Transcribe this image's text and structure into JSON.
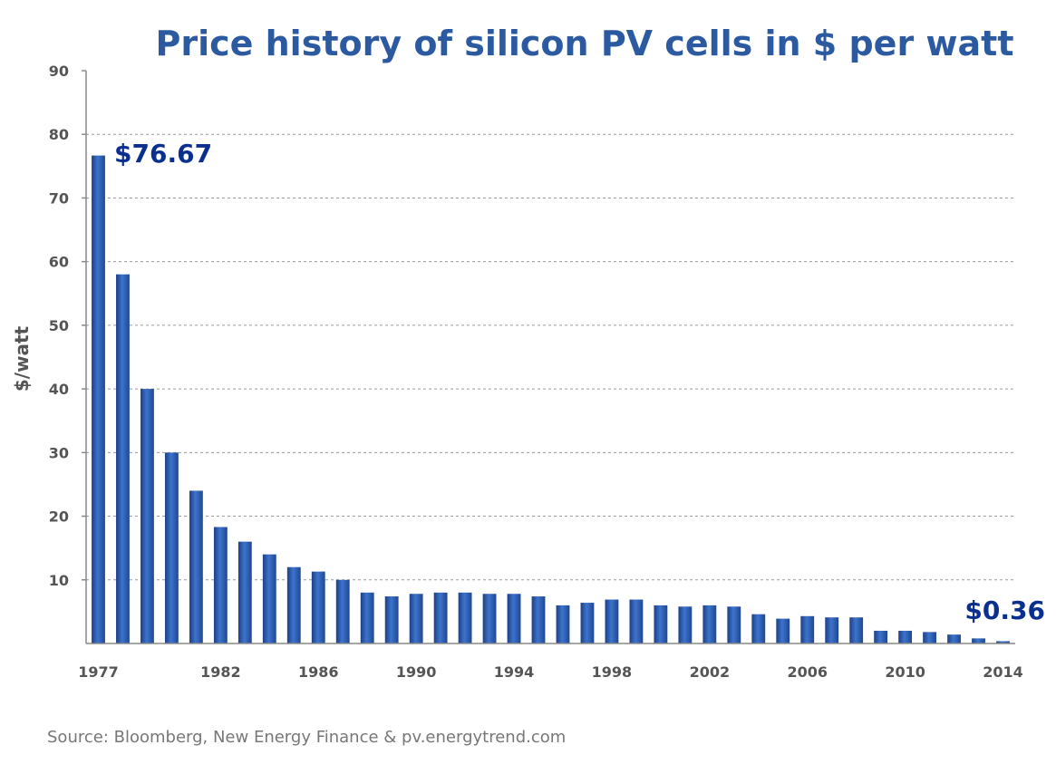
{
  "chart_data": {
    "type": "bar",
    "title": "Price history of silicon PV cells in $ per watt",
    "ylabel": "$/watt",
    "xlabel": "",
    "ylim": [
      0,
      90
    ],
    "yticks": [
      10,
      20,
      30,
      40,
      50,
      60,
      70,
      80,
      90
    ],
    "grid": "horizontal dashed",
    "x": [
      1977,
      1978,
      1979,
      1980,
      1981,
      1982,
      1983,
      1984,
      1985,
      1986,
      1987,
      1988,
      1989,
      1990,
      1991,
      1992,
      1993,
      1994,
      1995,
      1996,
      1997,
      1998,
      1999,
      2000,
      2001,
      2002,
      2003,
      2004,
      2005,
      2006,
      2007,
      2008,
      2009,
      2010,
      2011,
      2012,
      2013,
      2014
    ],
    "values": [
      76.67,
      58,
      40,
      30,
      24,
      18.3,
      16,
      14,
      12,
      11.3,
      10,
      8,
      7.4,
      7.8,
      8,
      8,
      7.8,
      7.8,
      7.4,
      6,
      6.4,
      6.9,
      6.9,
      6,
      5.8,
      6,
      5.8,
      4.6,
      3.9,
      4.3,
      4.1,
      4.1,
      2,
      2,
      1.8,
      1.4,
      0.8,
      0.36
    ],
    "xticklabels": [
      "1977",
      "1982",
      "1986",
      "1990",
      "1994",
      "1998",
      "2002",
      "2006",
      "2010",
      "2014"
    ],
    "annotations": [
      {
        "text": "$76.67",
        "x": 1977,
        "y": 76.67
      },
      {
        "text": "$0.36",
        "x": 2014,
        "y": 0.36
      }
    ],
    "source": "Source: Bloomberg, New Energy Finance & pv.energytrend.com",
    "colors": {
      "bar": "#2a5caa",
      "title": "#2c5aa0",
      "callout": "#0a2f8f"
    }
  }
}
